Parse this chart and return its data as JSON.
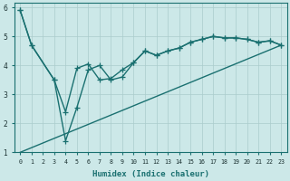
{
  "xlabel": "Humidex (Indice chaleur)",
  "xlim": [
    -0.5,
    23.5
  ],
  "ylim": [
    1,
    6.15
  ],
  "yticks": [
    1,
    2,
    3,
    4,
    5,
    6
  ],
  "xticks": [
    0,
    1,
    2,
    3,
    4,
    5,
    6,
    7,
    8,
    9,
    10,
    11,
    12,
    13,
    14,
    15,
    16,
    17,
    18,
    19,
    20,
    21,
    22,
    23
  ],
  "bg_color": "#cce8e8",
  "grid_color": "#aacccc",
  "line_color": "#1a7070",
  "line1_x": [
    0,
    1,
    3,
    4,
    5,
    6,
    7,
    8,
    9,
    10,
    11,
    12,
    13,
    14,
    15,
    16,
    17,
    18,
    19,
    20,
    21,
    22,
    23
  ],
  "line1_y": [
    5.9,
    4.7,
    3.5,
    2.4,
    3.9,
    4.05,
    3.5,
    3.55,
    3.85,
    4.1,
    4.5,
    4.35,
    4.5,
    4.6,
    4.8,
    4.9,
    5.0,
    4.95,
    4.95,
    4.9,
    4.8,
    4.85,
    4.7
  ],
  "line2_x": [
    0,
    1,
    3,
    4,
    5,
    6,
    7,
    8,
    9,
    10,
    11,
    12,
    13,
    14,
    15,
    16,
    17,
    18,
    19,
    20,
    21,
    22,
    23
  ],
  "line2_y": [
    5.9,
    4.7,
    3.5,
    1.4,
    2.55,
    3.85,
    4.0,
    3.5,
    3.6,
    4.1,
    4.5,
    4.35,
    4.5,
    4.6,
    4.8,
    4.9,
    5.0,
    4.95,
    4.95,
    4.9,
    4.8,
    4.85,
    4.7
  ],
  "line3_x": [
    0,
    23
  ],
  "line3_y": [
    1.0,
    4.7
  ],
  "linewidth": 1.0,
  "markersize": 3.0
}
